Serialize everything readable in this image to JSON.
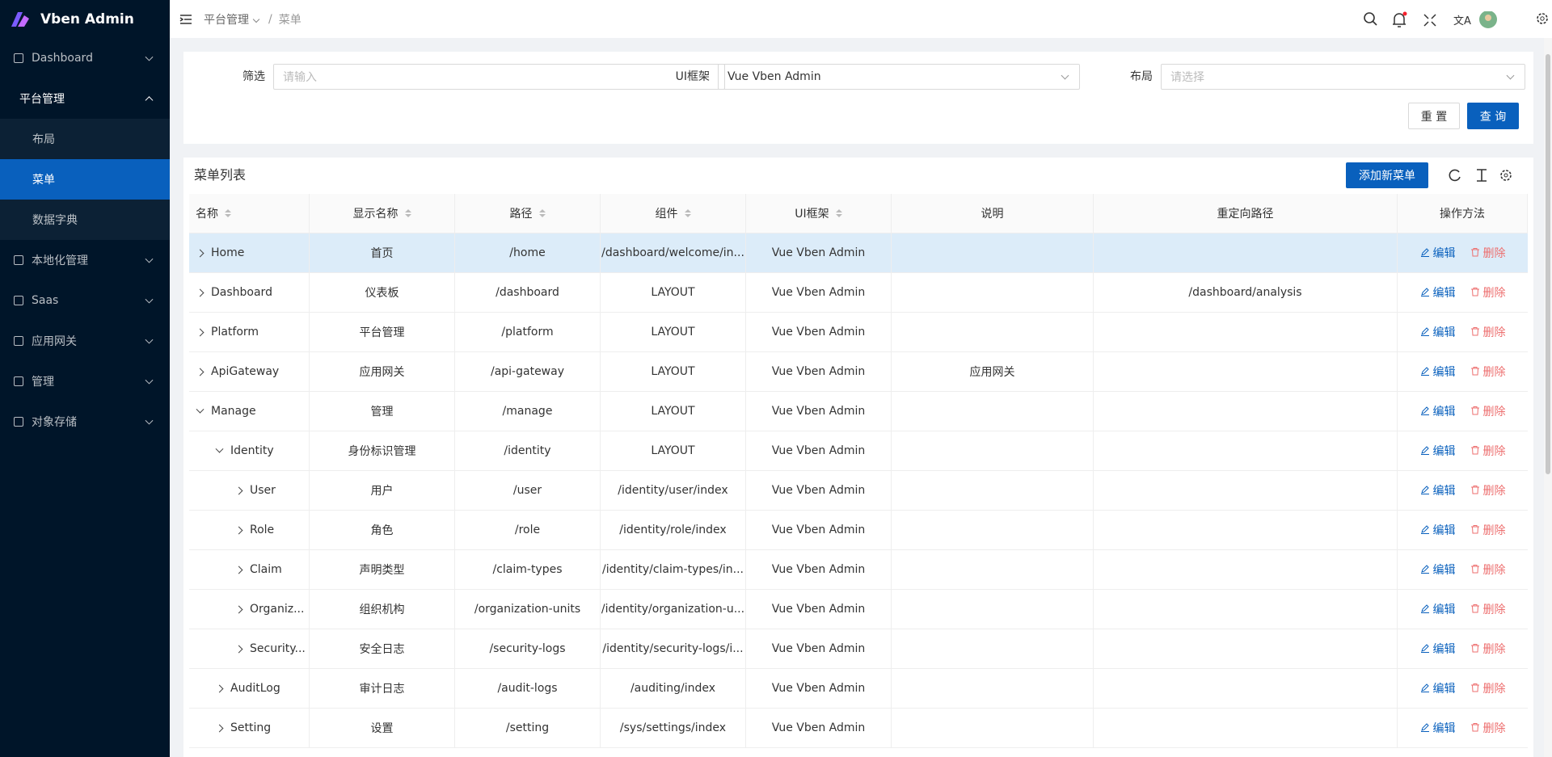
{
  "brand": "Vben Admin",
  "sidebar": {
    "items": [
      {
        "label": "Dashboard"
      },
      {
        "label": "平台管理",
        "open": true,
        "children": [
          {
            "label": "布局"
          },
          {
            "label": "菜单",
            "selected": true
          },
          {
            "label": "数据字典"
          }
        ]
      },
      {
        "label": "本地化管理"
      },
      {
        "label": "Saas"
      },
      {
        "label": "应用网关"
      },
      {
        "label": "管理"
      },
      {
        "label": "对象存储"
      }
    ]
  },
  "breadcrumb": {
    "items": [
      "平台管理",
      "菜单"
    ],
    "separator": "/"
  },
  "search_form": {
    "fields": [
      {
        "label": "筛选",
        "placeholder": "请输入"
      },
      {
        "label": "UI框架",
        "value": "Vue Vben Admin"
      },
      {
        "label": "布局",
        "placeholder": "请选择"
      }
    ],
    "buttons": [
      "重 置",
      "查 询"
    ]
  },
  "table": {
    "title": "菜单列表",
    "add_button": "添加新菜单",
    "columns": [
      {
        "label": "名称",
        "sortable": true
      },
      {
        "label": "显示名称",
        "sortable": true
      },
      {
        "label": "路径",
        "sortable": true
      },
      {
        "label": "组件",
        "sortable": true
      },
      {
        "label": "UI框架",
        "sortable": true
      },
      {
        "label": "说明"
      },
      {
        "label": "重定向路径"
      },
      {
        "label": "操作方法"
      }
    ],
    "actions": [
      "编辑",
      "删除"
    ],
    "rows": [
      {
        "cells": [
          "Home",
          "首页",
          "/home",
          "/dashboard/welcome/in...",
          "Vue Vben Admin",
          null,
          null
        ],
        "highlighted": true
      },
      {
        "cells": [
          "Dashboard",
          "仪表板",
          "/dashboard",
          "LAYOUT",
          "Vue Vben Admin",
          null,
          "/dashboard/analysis"
        ]
      },
      {
        "cells": [
          "Platform",
          "平台管理",
          "/platform",
          "LAYOUT",
          "Vue Vben Admin",
          null,
          null
        ]
      },
      {
        "cells": [
          "ApiGateway",
          "应用网关",
          "/api-gateway",
          "LAYOUT",
          "Vue Vben Admin",
          "应用网关",
          null
        ]
      },
      {
        "cells": [
          "Manage",
          "管理",
          "/manage",
          "LAYOUT",
          "Vue Vben Admin",
          null,
          null
        ],
        "expanded": true,
        "children": [
          {
            "cells": [
              "Identity",
              "身份标识管理",
              "/identity",
              "LAYOUT",
              "Vue Vben Admin",
              null,
              null
            ],
            "expanded": true,
            "children": [
              {
                "cells": [
                  "User",
                  "用户",
                  "/user",
                  "/identity/user/index",
                  "Vue Vben Admin",
                  null,
                  null
                ]
              },
              {
                "cells": [
                  "Role",
                  "角色",
                  "/role",
                  "/identity/role/index",
                  "Vue Vben Admin",
                  null,
                  null
                ]
              },
              {
                "cells": [
                  "Claim",
                  "声明类型",
                  "/claim-types",
                  "/identity/claim-types/in...",
                  "Vue Vben Admin",
                  null,
                  null
                ]
              },
              {
                "cells": [
                  "Organiz...",
                  "组织机构",
                  "/organization-units",
                  "/identity/organization-u...",
                  "Vue Vben Admin",
                  null,
                  null
                ]
              },
              {
                "cells": [
                  "Security...",
                  "安全日志",
                  "/security-logs",
                  "/identity/security-logs/i...",
                  "Vue Vben Admin",
                  null,
                  null
                ]
              }
            ]
          },
          {
            "cells": [
              "AuditLog",
              "审计日志",
              "/audit-logs",
              "/auditing/index",
              "Vue Vben Admin",
              null,
              null
            ]
          },
          {
            "cells": [
              "Setting",
              "设置",
              "/setting",
              "/sys/settings/index",
              "Vue Vben Admin",
              null,
              null
            ]
          }
        ]
      }
    ]
  }
}
